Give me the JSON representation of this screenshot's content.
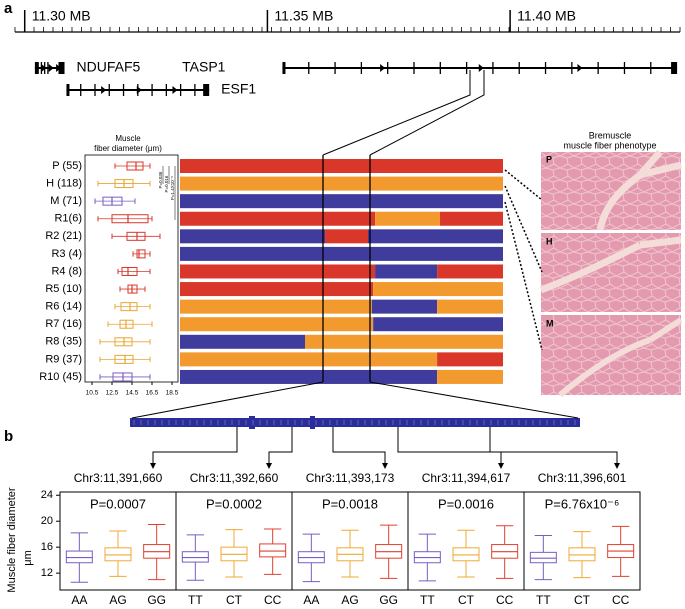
{
  "panel_labels": [
    "a",
    "b"
  ],
  "micrographs": {
    "title": [
      "Bremuscle",
      "muscle fiber phenotype"
    ],
    "labels": [
      "P",
      "H",
      "M"
    ]
  },
  "chart_data": [
    {
      "type": "genome-track",
      "xlim": [
        11.298,
        11.435
      ],
      "xticks": [
        {
          "value": 11.3,
          "label": "11.30 MB"
        },
        {
          "value": 11.35,
          "label": "11.35 MB"
        },
        {
          "value": 11.4,
          "label": "11.40 MB"
        }
      ],
      "genes": [
        {
          "name": "NDUFAF5",
          "start": 11.3021,
          "end": 11.3082
        },
        {
          "name": "TASP1",
          "start": 11.3531,
          "end": 11.4344
        },
        {
          "name": "ESF1",
          "start": 11.3086,
          "end": 11.338
        }
      ]
    },
    {
      "type": "box-h",
      "title": [
        "Muscle",
        "fiber diameter (μm)"
      ],
      "categories": [
        "P (55)",
        "H (118)",
        "M (71)",
        "R1(6)",
        "R2 (21)",
        "R3 (4)",
        "R4 (8)",
        "R5 (10)",
        "R6 (14)",
        "R7 (16)",
        "R8 (35)",
        "R9 (37)",
        "R10 (45)"
      ],
      "xlim": [
        9.8,
        19.1
      ],
      "xticks": [
        10.5,
        12.5,
        14.5,
        16.5,
        18.5
      ],
      "annotations": [
        "P=0.036",
        "P=0.016",
        "P=1.4X10⁻⁵"
      ],
      "boxes": [
        {
          "low": 12.8,
          "q1": 14.0,
          "median": 14.9,
          "q3": 15.6,
          "high": 16.3,
          "color": "#d9372a"
        },
        {
          "low": 11.1,
          "q1": 12.8,
          "median": 13.7,
          "q3": 14.6,
          "high": 16.3,
          "color": "#e9a530"
        },
        {
          "low": 10.8,
          "q1": 11.6,
          "median": 12.5,
          "q3": 13.5,
          "high": 14.8,
          "color": "#7a5cc4"
        },
        {
          "low": 11.1,
          "q1": 12.5,
          "median": 14.1,
          "q3": 16.1,
          "high": 16.5,
          "color": "#d9372a"
        },
        {
          "low": 12.5,
          "q1": 14.0,
          "median": 15.0,
          "q3": 15.8,
          "high": 17.3,
          "color": "#d9372a"
        },
        {
          "low": 14.6,
          "q1": 15.0,
          "median": 15.2,
          "q3": 15.8,
          "high": 16.3,
          "color": "#d9372a"
        },
        {
          "low": 13.1,
          "q1": 13.5,
          "median": 14.1,
          "q3": 15.0,
          "high": 16.3,
          "color": "#d9372a"
        },
        {
          "low": 13.3,
          "q1": 14.1,
          "median": 14.5,
          "q3": 15.0,
          "high": 15.8,
          "color": "#d9372a"
        },
        {
          "low": 12.8,
          "q1": 13.4,
          "median": 14.3,
          "q3": 15.0,
          "high": 16.3,
          "color": "#e9a530"
        },
        {
          "low": 12.1,
          "q1": 13.3,
          "median": 13.9,
          "q3": 14.6,
          "high": 16.5,
          "color": "#e9a530"
        },
        {
          "low": 11.3,
          "q1": 12.8,
          "median": 13.7,
          "q3": 14.5,
          "high": 16.3,
          "color": "#e9a530"
        },
        {
          "low": 11.3,
          "q1": 12.8,
          "median": 13.8,
          "q3": 14.6,
          "high": 16.3,
          "color": "#e9a530"
        },
        {
          "low": 11.3,
          "q1": 12.6,
          "median": 13.6,
          "q3": 14.5,
          "high": 16.3,
          "color": "#7a5cc4"
        }
      ]
    },
    {
      "type": "haplotype",
      "xlim": [
        0,
        100
      ],
      "rows": [
        [
          {
            "start": 0,
            "end": 100,
            "color": "#d9372a"
          }
        ],
        [
          {
            "start": 0,
            "end": 100,
            "color": "#f39a2e"
          }
        ],
        [
          {
            "start": 0,
            "end": 100,
            "color": "#3f3c9e"
          }
        ],
        [
          {
            "start": 0,
            "end": 60.4,
            "color": "#d9372a"
          },
          {
            "start": 60.4,
            "end": 80.5,
            "color": "#f39a2e"
          },
          {
            "start": 80.5,
            "end": 100,
            "color": "#d9372a"
          }
        ],
        [
          {
            "start": 0,
            "end": 44.9,
            "color": "#3f3c9e"
          },
          {
            "start": 44.9,
            "end": 58.2,
            "color": "#d9372a"
          },
          {
            "start": 58.2,
            "end": 100,
            "color": "#3f3c9e"
          }
        ],
        [
          {
            "start": 0,
            "end": 100,
            "color": "#3f3c9e"
          }
        ],
        [
          {
            "start": 0,
            "end": 60.4,
            "color": "#d9372a"
          },
          {
            "start": 60.4,
            "end": 79.6,
            "color": "#3f3c9e"
          },
          {
            "start": 79.6,
            "end": 100,
            "color": "#d9372a"
          }
        ],
        [
          {
            "start": 0,
            "end": 59.8,
            "color": "#d9372a"
          },
          {
            "start": 59.8,
            "end": 100,
            "color": "#f39a2e"
          }
        ],
        [
          {
            "start": 0,
            "end": 59.4,
            "color": "#f39a2e"
          },
          {
            "start": 59.4,
            "end": 79.6,
            "color": "#3f3c9e"
          },
          {
            "start": 79.6,
            "end": 100,
            "color": "#f39a2e"
          }
        ],
        [
          {
            "start": 0,
            "end": 59.8,
            "color": "#f39a2e"
          },
          {
            "start": 59.8,
            "end": 100,
            "color": "#3f3c9e"
          }
        ],
        [
          {
            "start": 0,
            "end": 38.7,
            "color": "#3f3c9e"
          },
          {
            "start": 38.7,
            "end": 100,
            "color": "#f39a2e"
          }
        ],
        [
          {
            "start": 0,
            "end": 79.6,
            "color": "#f39a2e"
          },
          {
            "start": 79.6,
            "end": 100,
            "color": "#d9372a"
          }
        ],
        [
          {
            "start": 0,
            "end": 79.6,
            "color": "#3f3c9e"
          },
          {
            "start": 79.6,
            "end": 100,
            "color": "#f39a2e"
          }
        ]
      ]
    },
    {
      "type": "box",
      "title": "Chr3:11,391,660",
      "subtitle": "P=0.0007",
      "ylabel": [
        "Muscle fiber diameter",
        "μm"
      ],
      "ylim": [
        9.4,
        24.5
      ],
      "yticks": [
        12,
        16,
        20,
        24
      ],
      "categories": [
        "AA",
        "AG",
        "GG"
      ],
      "boxes": [
        {
          "low": 10.6,
          "q1": 13.6,
          "median": 14.4,
          "q3": 15.4,
          "high": 18.2,
          "color": "#7a5cc4"
        },
        {
          "low": 11.5,
          "q1": 13.9,
          "median": 14.8,
          "q3": 15.9,
          "high": 18.5,
          "color": "#f0a836"
        },
        {
          "low": 11.0,
          "q1": 14.3,
          "median": 15.3,
          "q3": 16.4,
          "high": 19.5,
          "color": "#e0412f"
        }
      ]
    },
    {
      "type": "box",
      "title": "Chr3:11,392,660",
      "subtitle": "P=0.0002",
      "ylim": [
        9.4,
        24.5
      ],
      "categories": [
        "TT",
        "CT",
        "CC"
      ],
      "boxes": [
        {
          "low": 10.9,
          "q1": 13.7,
          "median": 14.4,
          "q3": 15.3,
          "high": 17.9,
          "color": "#7a5cc4"
        },
        {
          "low": 11.4,
          "q1": 13.9,
          "median": 14.9,
          "q3": 16.0,
          "high": 18.7,
          "color": "#f0a836"
        },
        {
          "low": 11.8,
          "q1": 14.5,
          "median": 15.4,
          "q3": 16.5,
          "high": 18.8,
          "color": "#e0412f"
        }
      ]
    },
    {
      "type": "box",
      "title": "Chr3:11,393,173",
      "subtitle": "P=0.0018",
      "ylim": [
        9.4,
        24.5
      ],
      "categories": [
        "AA",
        "AG",
        "GG"
      ],
      "boxes": [
        {
          "low": 10.7,
          "q1": 13.6,
          "median": 14.4,
          "q3": 15.3,
          "high": 18.0,
          "color": "#7a5cc4"
        },
        {
          "low": 11.4,
          "q1": 13.9,
          "median": 14.9,
          "q3": 15.9,
          "high": 18.6,
          "color": "#f0a836"
        },
        {
          "low": 11.2,
          "q1": 14.3,
          "median": 15.3,
          "q3": 16.4,
          "high": 19.4,
          "color": "#e0412f"
        }
      ]
    },
    {
      "type": "box",
      "title": "Chr3:11,394,617",
      "subtitle": "P=0.0016",
      "ylim": [
        9.4,
        24.5
      ],
      "categories": [
        "TT",
        "CT",
        "CC"
      ],
      "boxes": [
        {
          "low": 10.8,
          "q1": 13.6,
          "median": 14.4,
          "q3": 15.3,
          "high": 18.0,
          "color": "#7a5cc4"
        },
        {
          "low": 11.4,
          "q1": 13.9,
          "median": 14.8,
          "q3": 15.9,
          "high": 18.6,
          "color": "#f0a836"
        },
        {
          "low": 11.2,
          "q1": 14.3,
          "median": 15.3,
          "q3": 16.4,
          "high": 19.3,
          "color": "#e0412f"
        }
      ]
    },
    {
      "type": "box",
      "title": "Chr3:11,396,601",
      "subtitle": "P=6.76x10⁻⁶",
      "ylim": [
        9.4,
        24.5
      ],
      "categories": [
        "TT",
        "CT",
        "CC"
      ],
      "boxes": [
        {
          "low": 11.0,
          "q1": 13.6,
          "median": 14.3,
          "q3": 15.2,
          "high": 17.8,
          "color": "#7a5cc4"
        },
        {
          "low": 11.3,
          "q1": 13.9,
          "median": 14.8,
          "q3": 15.9,
          "high": 18.4,
          "color": "#f0a836"
        },
        {
          "low": 11.5,
          "q1": 14.4,
          "median": 15.4,
          "q3": 16.4,
          "high": 19.2,
          "color": "#e0412f"
        }
      ]
    }
  ]
}
